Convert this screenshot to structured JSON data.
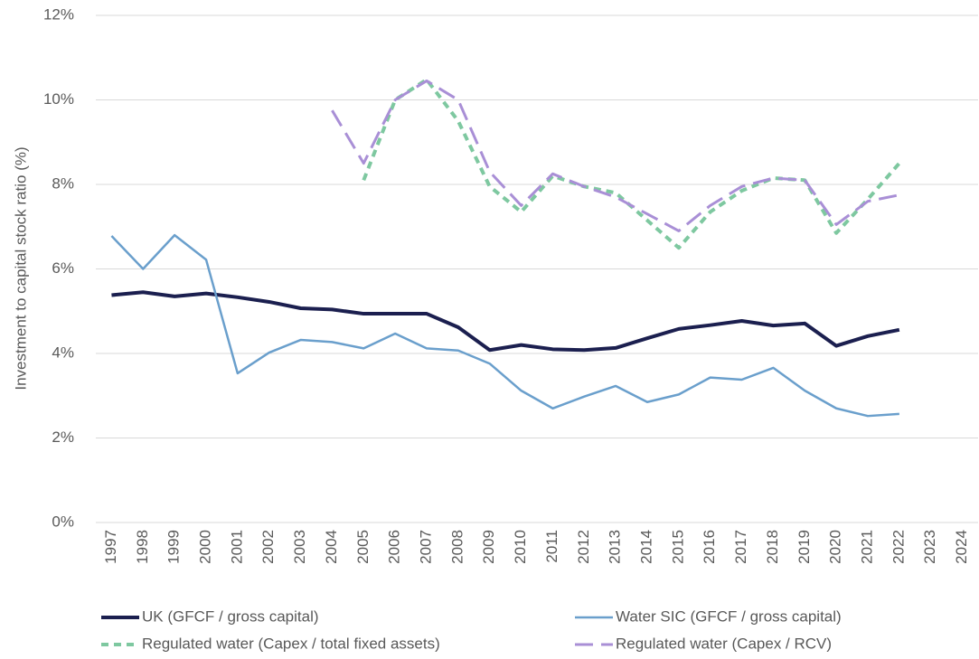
{
  "chart_data": {
    "type": "line",
    "y_label": "Investment to capital stock ratio (%)",
    "categories": [
      "1997",
      "1998",
      "1999",
      "2000",
      "2001",
      "2002",
      "2003",
      "2004",
      "2005",
      "2006",
      "2007",
      "2008",
      "2009",
      "2010",
      "2011",
      "2012",
      "2013",
      "2014",
      "2015",
      "2016",
      "2017",
      "2018",
      "2019",
      "2020",
      "2021",
      "2022",
      "2023",
      "2024"
    ],
    "series": [
      {
        "name": "UK (GFCF / gross capital)",
        "color": "#1b1f4f",
        "style": "solid-thick",
        "values": [
          5.38,
          5.45,
          5.35,
          5.42,
          5.33,
          5.22,
          5.07,
          5.04,
          4.94,
          4.94,
          4.94,
          4.62,
          4.08,
          4.2,
          4.1,
          4.08,
          4.13,
          4.36,
          4.58,
          4.67,
          4.77,
          4.66,
          4.71,
          4.18,
          4.41,
          4.56,
          null,
          null
        ]
      },
      {
        "name": "Water SIC (GFCF / gross capital)",
        "color": "#6a9fcc",
        "style": "solid",
        "values": [
          6.78,
          6.0,
          6.8,
          6.22,
          3.53,
          4.02,
          4.32,
          4.27,
          4.12,
          4.47,
          4.12,
          4.07,
          3.76,
          3.12,
          2.7,
          2.98,
          3.23,
          2.85,
          3.03,
          3.43,
          3.38,
          3.66,
          3.12,
          2.7,
          2.52,
          2.57,
          null,
          null
        ]
      },
      {
        "name": "Regulated water (Capex / total fixed assets)",
        "color": "#7ec8a0",
        "style": "dotted",
        "values": [
          null,
          null,
          null,
          null,
          null,
          null,
          null,
          null,
          8.1,
          10.0,
          10.48,
          9.5,
          7.95,
          7.35,
          8.2,
          7.95,
          7.8,
          7.15,
          6.5,
          7.35,
          7.85,
          8.15,
          8.1,
          6.85,
          7.65,
          8.5,
          null,
          null
        ]
      },
      {
        "name": "Regulated water (Capex / RCV)",
        "color": "#a98fd6",
        "style": "dashed",
        "values": [
          null,
          null,
          null,
          null,
          null,
          null,
          null,
          9.75,
          8.5,
          10.0,
          10.45,
          10.0,
          8.3,
          7.5,
          8.25,
          7.95,
          7.7,
          7.3,
          6.9,
          7.5,
          7.95,
          8.15,
          8.1,
          7.05,
          7.6,
          7.75,
          null,
          null
        ]
      }
    ],
    "ylim": [
      0,
      12
    ],
    "yticks": [
      {
        "value": 0,
        "label": "0%"
      },
      {
        "value": 2,
        "label": "2%"
      },
      {
        "value": 4,
        "label": "4%"
      },
      {
        "value": 6,
        "label": "6%"
      },
      {
        "value": 8,
        "label": "8%"
      },
      {
        "value": 10,
        "label": "10%"
      },
      {
        "value": 12,
        "label": "12%"
      }
    ],
    "grid": true
  }
}
